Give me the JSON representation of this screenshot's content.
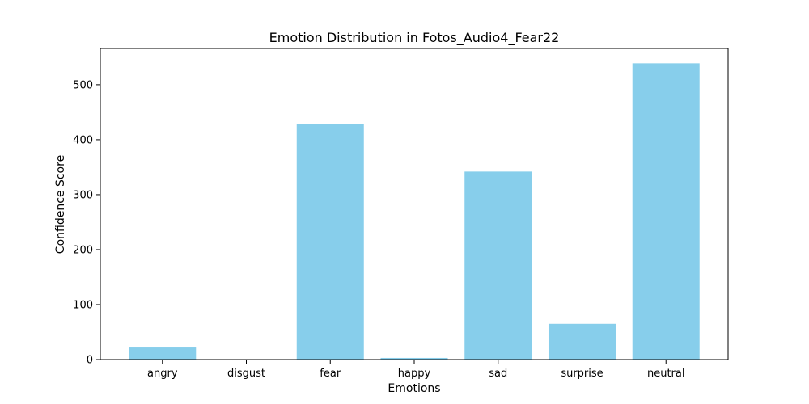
{
  "chart_data": {
    "type": "bar",
    "title": "Emotion Distribution in Fotos_Audio4_Fear22",
    "xlabel": "Emotions",
    "ylabel": "Confidence Score",
    "categories": [
      "angry",
      "disgust",
      "fear",
      "happy",
      "sad",
      "surprise",
      "neutral"
    ],
    "values": [
      22,
      0,
      428,
      3,
      342,
      65,
      539
    ],
    "ylim": [
      0,
      566
    ],
    "yticks": [
      0,
      100,
      200,
      300,
      400,
      500
    ],
    "grid": false,
    "legend": "none",
    "bar_color": "#87ceeb"
  }
}
